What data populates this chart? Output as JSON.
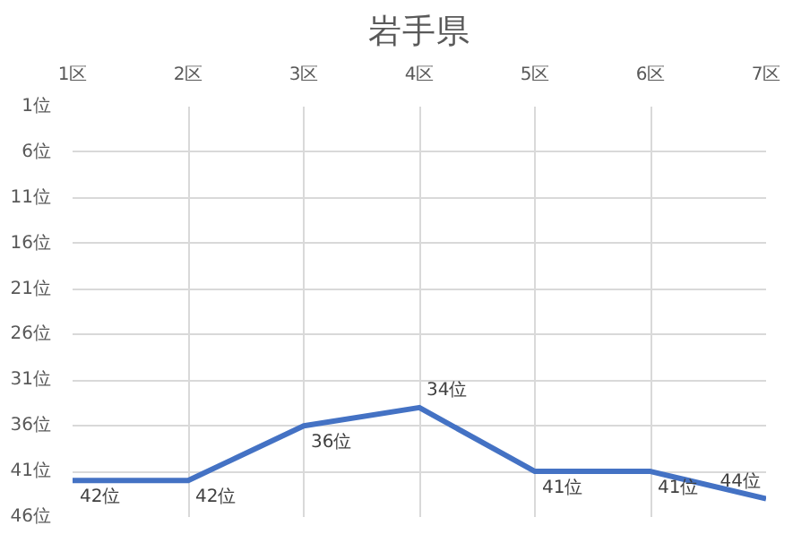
{
  "chart_data": {
    "type": "line",
    "title": "岩手県",
    "categories": [
      "1区",
      "2区",
      "3区",
      "4区",
      "5区",
      "6区",
      "7区"
    ],
    "series": [
      {
        "color": "#4472c4",
        "values": [
          42,
          42,
          36,
          34,
          41,
          41,
          44
        ],
        "value_labels": [
          "42位",
          "42位",
          "36位",
          "34位",
          "41位",
          "41位",
          "44位"
        ]
      }
    ],
    "ylim": [
      46,
      1
    ],
    "yticks": [
      {
        "value": 1,
        "label": "1位"
      },
      {
        "value": 6,
        "label": "6位"
      },
      {
        "value": 11,
        "label": "11位"
      },
      {
        "value": 16,
        "label": "16位"
      },
      {
        "value": 21,
        "label": "21位"
      },
      {
        "value": 26,
        "label": "26位"
      },
      {
        "value": 31,
        "label": "31位"
      },
      {
        "value": 36,
        "label": "36位"
      },
      {
        "value": 41,
        "label": "41位"
      },
      {
        "value": 46,
        "label": "46位"
      }
    ],
    "grid": true,
    "marker": "none",
    "line_style": "solid"
  }
}
